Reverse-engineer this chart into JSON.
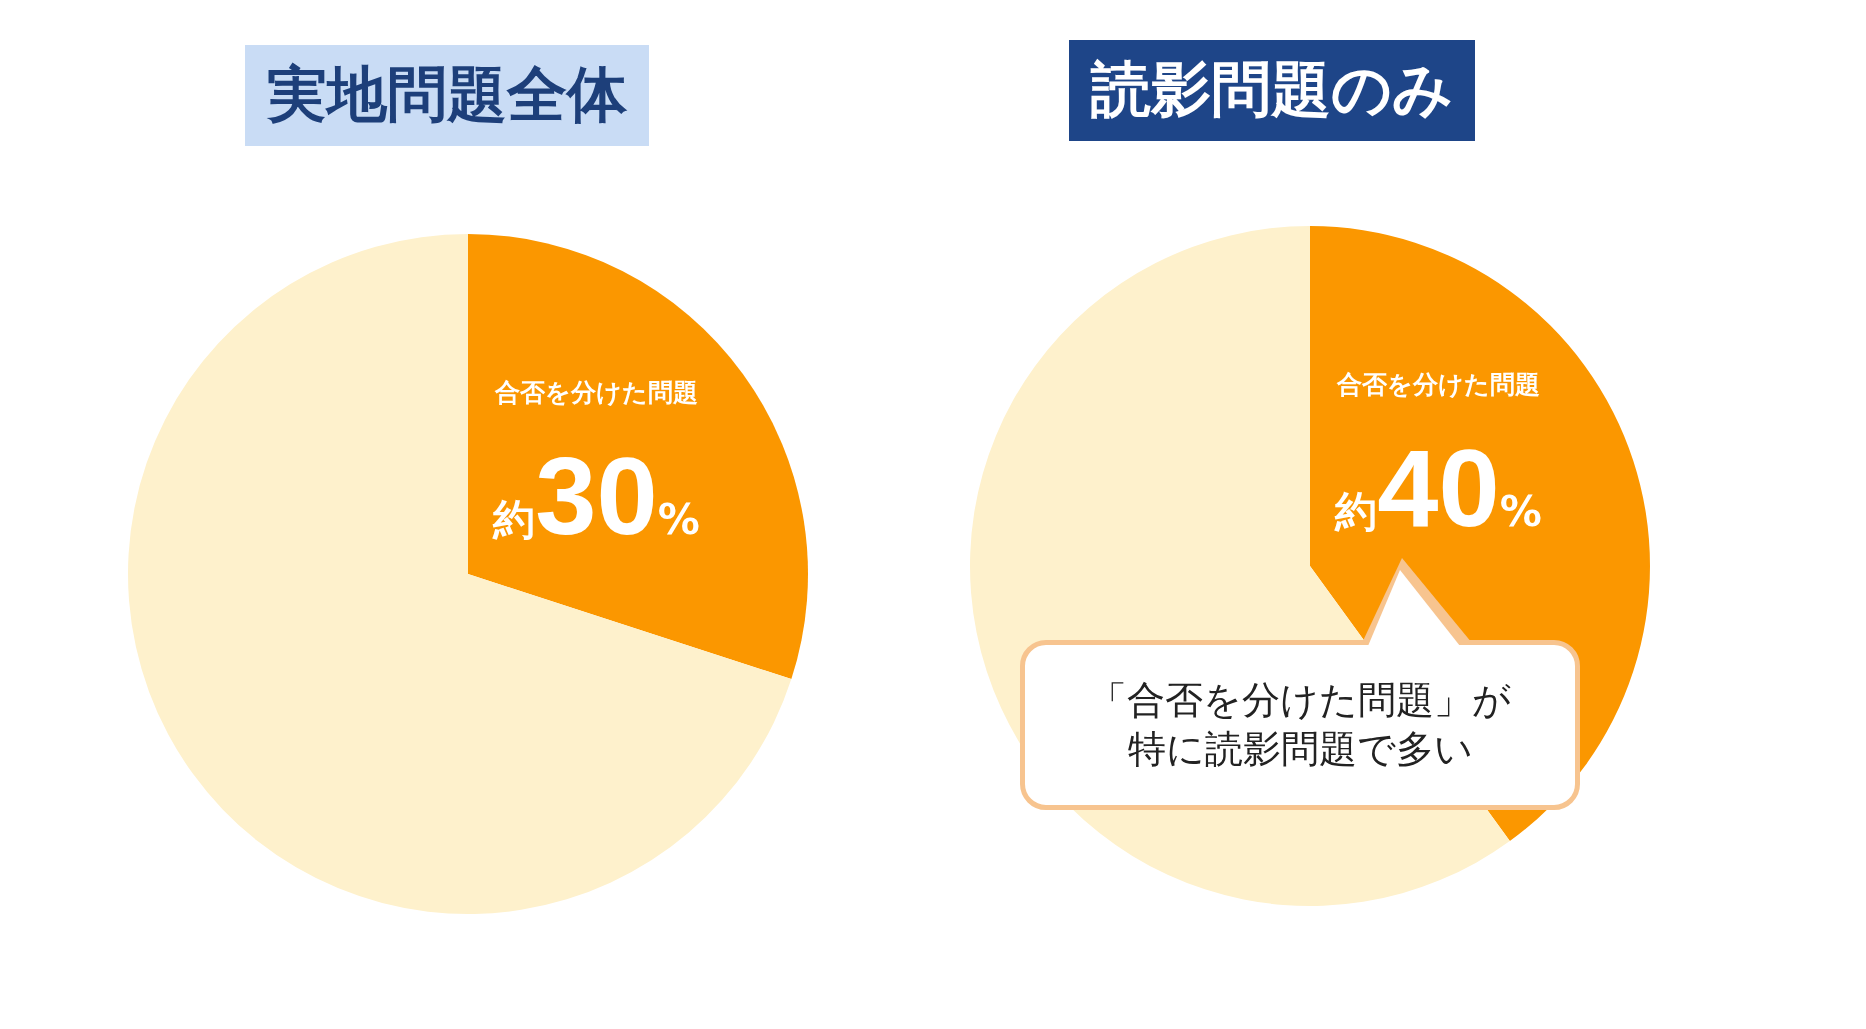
{
  "chart_data": [
    {
      "type": "pie",
      "title": "実地問題全体",
      "categories": [
        "合否を分けた問題",
        null
      ],
      "values": [
        30,
        70
      ],
      "colors": [
        "#fb9700",
        "#fef1cc"
      ],
      "value_labels": [
        "約30%",
        null
      ]
    },
    {
      "type": "pie",
      "title": "読影問題のみ",
      "categories": [
        "合否を分けた問題",
        null
      ],
      "values": [
        40,
        60
      ],
      "colors": [
        "#fb9700",
        "#fef1cc"
      ],
      "value_labels": [
        "約40%",
        null
      ],
      "annotations": [
        "「合否を分けた問題」が特に読影問題で多い"
      ]
    }
  ]
}
